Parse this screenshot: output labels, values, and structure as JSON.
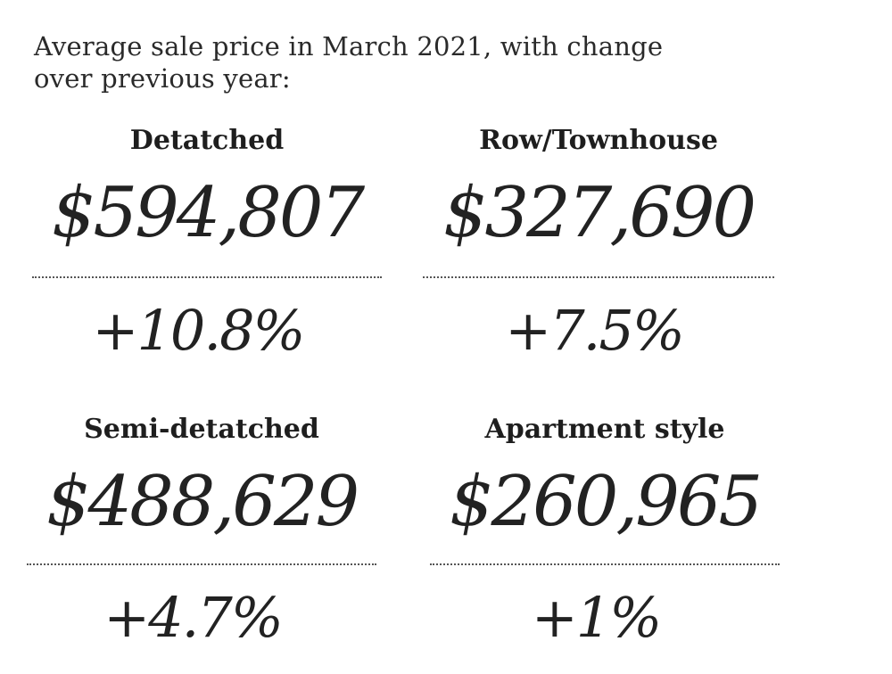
{
  "intro": {
    "line1": "Average sale price in March 2021, with change",
    "line2": "over previous year:"
  },
  "categories": [
    {
      "label": "Detatched",
      "price": "$594,807",
      "change": "+10.8%"
    },
    {
      "label": "Row/Townhouse",
      "price": "$327,690",
      "change": "+7.5%"
    },
    {
      "label": "Semi-detatched",
      "price": "$488,629",
      "change": "+4.7%"
    },
    {
      "label": "Apartment style",
      "price": "$260,965",
      "change": "+1%"
    }
  ],
  "colors": {
    "text": "#222222",
    "rule": "#555555",
    "background": "#ffffff"
  }
}
